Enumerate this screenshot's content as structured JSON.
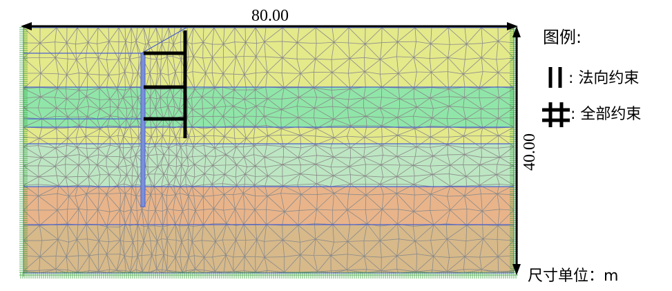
{
  "dimensions": {
    "width_label": "80.00",
    "height_label": "40.00"
  },
  "legend": {
    "title": "图例:",
    "items": [
      {
        "symbol": "normal-constraint-icon",
        "label": ": 法向约束"
      },
      {
        "symbol": "full-constraint-icon",
        "label": ": 全部约束"
      }
    ]
  },
  "unit_label": "尺寸单位：m",
  "colors": {
    "layer_yellow": "#e4e98a",
    "layer_green": "#8fe6a8",
    "layer_light_green": "#bde6c2",
    "layer_orange": "#e9b48a",
    "layer_tan": "#d7b98a",
    "boundary_blue": "#4a5fd0",
    "mesh_gray": "#8a8a8a",
    "support_green": "#2e9c2e"
  }
}
